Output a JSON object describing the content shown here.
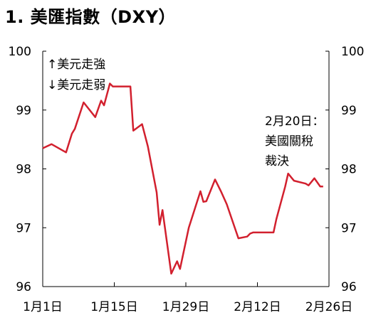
{
  "chart_data": {
    "type": "line",
    "title": "1. 美匯指數（DXY）",
    "xlabel": "",
    "ylabel": "",
    "ylim": [
      96,
      100
    ],
    "yticks": [
      96,
      97,
      98,
      99,
      100
    ],
    "ytick_labels": [
      "96",
      "97",
      "98",
      "99",
      "100"
    ],
    "xtick_labels": [
      "1月1日",
      "1月15日",
      "1月29日",
      "2月12日",
      "2月26日"
    ],
    "grid": false,
    "line_color": "#D2202E",
    "annotations": {
      "legend_top": "↑美元走強",
      "legend_bottom": "↓美元走弱",
      "event_line1": "2月20日：",
      "event_line2": "美國關稅",
      "event_line3": "裁決"
    },
    "series": [
      {
        "x": [
          0,
          3,
          8,
          10,
          11,
          14,
          18,
          20,
          21,
          23,
          24,
          27,
          30,
          31,
          34,
          36,
          39,
          40,
          41,
          44,
          46,
          47,
          50,
          54,
          55,
          56,
          59,
          61,
          63,
          67,
          70,
          71,
          72,
          75,
          79,
          80,
          83,
          84,
          86,
          90,
          91,
          93,
          95,
          96
        ],
        "values": [
          98.35,
          98.42,
          98.28,
          98.6,
          98.68,
          99.13,
          98.88,
          99.16,
          99.08,
          99.45,
          99.4,
          99.4,
          99.4,
          98.65,
          98.76,
          98.38,
          97.6,
          97.05,
          97.3,
          96.22,
          96.43,
          96.3,
          97.0,
          97.62,
          97.44,
          97.45,
          97.82,
          97.62,
          97.4,
          96.82,
          96.85,
          96.9,
          96.92,
          96.92,
          96.92,
          97.15,
          97.7,
          97.92,
          97.8,
          97.75,
          97.72,
          97.84,
          97.7,
          97.7
        ]
      }
    ]
  }
}
